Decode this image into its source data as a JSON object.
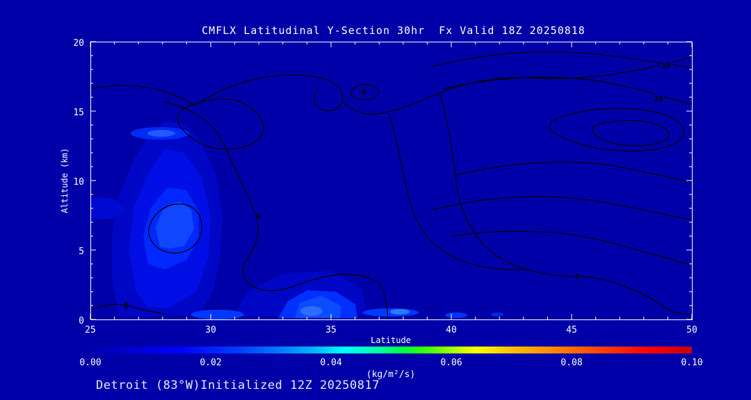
{
  "title": "CMFLX Latitudinal Y-Section 30hr  Fx Valid 18Z 20250818",
  "footer": "Detroit (83°W)Initialized 12Z 20250817",
  "axes": {
    "x_label": "Latitude",
    "y_label": "Altitude (km)",
    "x_ticks": [
      "25",
      "30",
      "35",
      "40",
      "45",
      "50"
    ],
    "y_ticks": [
      "20",
      "15",
      "10",
      "5",
      "0"
    ]
  },
  "colorbar": {
    "tick_labels": [
      "0.00",
      "0.02",
      "0.04",
      "0.06",
      "0.08",
      "0.10"
    ],
    "units": "(kg/m²/s)",
    "stops": [
      [
        0.0,
        "#0000A8"
      ],
      [
        0.05,
        "#0000C8"
      ],
      [
        0.15,
        "#0000FF"
      ],
      [
        0.25,
        "#0040FF"
      ],
      [
        0.32,
        "#0080FF"
      ],
      [
        0.38,
        "#00C0FF"
      ],
      [
        0.42,
        "#00FFFF"
      ],
      [
        0.48,
        "#00FFA0"
      ],
      [
        0.52,
        "#00FF40"
      ],
      [
        0.56,
        "#40FF00"
      ],
      [
        0.6,
        "#A0FF00"
      ],
      [
        0.64,
        "#FFFF00"
      ],
      [
        0.7,
        "#FFC000"
      ],
      [
        0.78,
        "#FF8000"
      ],
      [
        0.85,
        "#FF4000"
      ],
      [
        0.93,
        "#FF0000"
      ],
      [
        1.0,
        "#C80000"
      ]
    ]
  },
  "contour_labels": [
    {
      "text": "0"
    },
    {
      "text": "0"
    },
    {
      "text": "0"
    },
    {
      "text": "0"
    },
    {
      "text": "10"
    },
    {
      "text": "20"
    }
  ],
  "colors": {
    "background": "#0000A8",
    "axis": "#FFFFFF",
    "contour_line": "#000000",
    "fill_weak": "#0006C6",
    "fill_moderate": "#000EE6",
    "fill_strong": "#0028FF",
    "fill_core": "#1146FF"
  },
  "chart_data": {
    "type": "contour",
    "title": "CMFLX Latitudinal Y-Section 30hr  Fx Valid 18Z 20250818",
    "station": "Detroit (83°W)",
    "initialized": "12Z 20250817",
    "valid": "18Z 20250818",
    "forecast_hour": 30,
    "xlabel": "Latitude",
    "ylabel": "Altitude (km)",
    "xlim": [
      25,
      50
    ],
    "ylim": [
      0,
      20
    ],
    "x_ticks": [
      25,
      30,
      35,
      40,
      45,
      50
    ],
    "y_ticks": [
      0,
      5,
      10,
      15,
      20
    ],
    "shaded_variable": "CMFLX",
    "shade_range": [
      0.0,
      0.1
    ],
    "shade_units": "(kg/m²/s)",
    "colorbar_ticks": [
      0.0,
      0.02,
      0.04,
      0.06,
      0.08,
      0.1
    ],
    "line_contour_levels_labeled": [
      0,
      10,
      20
    ],
    "legend_position": "bottom-colorbar",
    "grid": false,
    "features": [
      {
        "name": "midlevel-flux-maximum",
        "lat_range": [
          26.5,
          30.5
        ],
        "alt_km_range": [
          1,
          13
        ],
        "peak_lat": 28.5,
        "peak_alt_km": 6.5,
        "peak_value_approx": 0.02,
        "note": "closed black contour around core"
      },
      {
        "name": "upper-streak",
        "lat_range": [
          27,
          29
        ],
        "alt_km": 13.4,
        "value_approx": 0.015
      },
      {
        "name": "left-edge-patch",
        "lat": 25.5,
        "alt_km": 8,
        "value_approx": 0.01
      },
      {
        "name": "boundary-layer-maximum",
        "lat_range": [
          33,
          36
        ],
        "alt_km_range": [
          0,
          2
        ],
        "peak_value_approx": 0.02
      },
      {
        "name": "surface-spot",
        "lat": 30.3,
        "alt_km": 0.3,
        "value_approx": 0.015
      },
      {
        "name": "surface-spot-bright",
        "lat": 37.5,
        "alt_km": 0.5,
        "value_approx": 0.025
      },
      {
        "name": "surface-spot-small",
        "lat": 40.2,
        "alt_km": 0.3,
        "value_approx": 0.012
      },
      {
        "name": "upper-right-line-contour-maximum",
        "lat_range": [
          44,
          50
        ],
        "alt_km_range": [
          12,
          18
        ],
        "labeled_levels": [
          0,
          10,
          20
        ]
      }
    ]
  }
}
